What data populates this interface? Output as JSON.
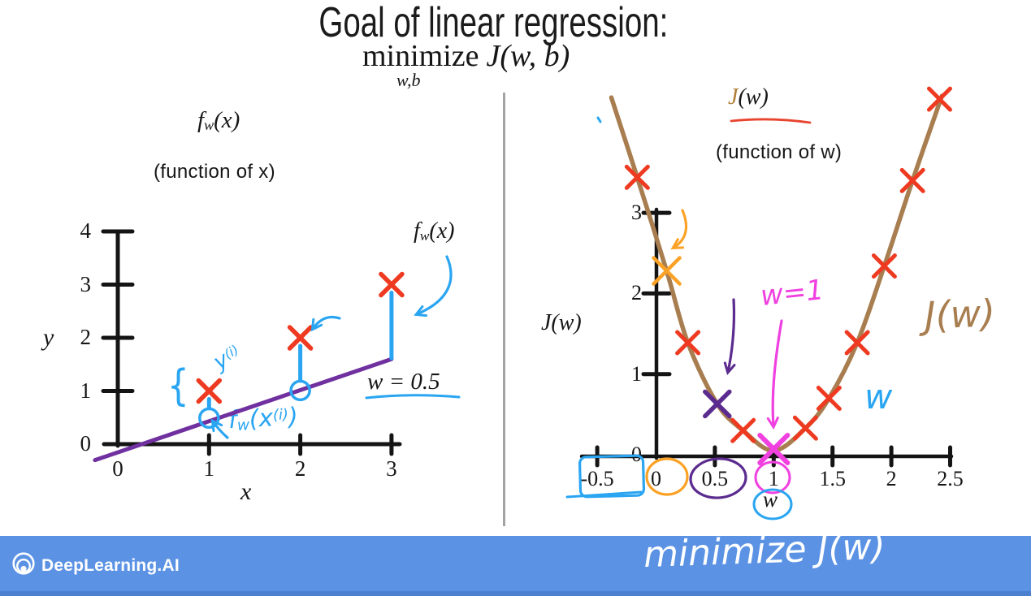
{
  "slide": {
    "title": "Goal of linear regression:",
    "objective_operator": "minimize",
    "objective_subscript": "w,b",
    "objective_expression": "J(w, b)"
  },
  "left_chart": {
    "title_base": "f",
    "title_sub": "w",
    "title_rest": "(x)",
    "subtitle": "(function of x)",
    "ylabel": "y",
    "xlabel": "x",
    "yticks": [
      "4",
      "3",
      "2",
      "1",
      "0"
    ],
    "xticks": [
      "0",
      "1",
      "2",
      "3"
    ],
    "callout_base": "f",
    "callout_sub": "w",
    "callout_rest": "(x)",
    "w_value_label": "w = 0.5",
    "target_label_base": "y",
    "target_label_sup": "(i)",
    "pred_label_base": "f",
    "pred_label_sub": "w",
    "pred_label_mid": "(x",
    "pred_label_sup": "(i)",
    "pred_label_end": ")",
    "brace": "{"
  },
  "right_chart": {
    "title_j": "J",
    "title_rest": "(w)",
    "subtitle": "(function of w)",
    "ylabel": "J(w)",
    "xlabel": "w",
    "yticks": [
      "3",
      "2",
      "1",
      "0"
    ],
    "xticks": [
      "-0.5",
      "0",
      "0.5",
      "1",
      "1.5",
      "2",
      "2.5"
    ],
    "min_annotation": "w=1",
    "curve_label": "J(w)",
    "axis_note": "w"
  },
  "footer": {
    "brand": "DeepLearning.AI",
    "logo_icon": "deeplearning-rings-icon",
    "note": "minimize J(w)"
  },
  "colors": {
    "red": "#ee3a20",
    "blue": "#2aa5f2",
    "purple_line": "#7030a0",
    "purple": "#5b2b8f",
    "orange": "#fba226",
    "magenta": "#f040e0",
    "brown": "#a87e50",
    "underline_red": "#e8442e",
    "axis": "#141414",
    "footer_blue": "#5b92e4",
    "title_j_gold": "#b08036"
  },
  "chart_data": [
    {
      "type": "scatter",
      "title": "f_w(x)",
      "subtitle": "(function of x)",
      "xlabel": "x",
      "ylabel": "y",
      "xlim": [
        -0.3,
        3.3
      ],
      "ylim": [
        -0.4,
        4.2
      ],
      "xticks": [
        0,
        1,
        2,
        3
      ],
      "yticks": [
        0,
        1,
        2,
        3,
        4
      ],
      "points": [
        [
          1,
          1
        ],
        [
          2,
          2
        ],
        [
          3,
          3
        ]
      ],
      "fit_line": {
        "label": "f_w(x)",
        "w": 0.5,
        "b": 0,
        "x1": -0.25,
        "y1": -0.3,
        "x2": 3.0,
        "y2": 1.6
      },
      "fit_points": [
        [
          1,
          0.49
        ],
        [
          2,
          1.01
        ]
      ],
      "residuals": [
        {
          "x": 1,
          "y": 1,
          "yhat": 0.49
        },
        {
          "x": 2,
          "y": 2,
          "yhat": 1.01
        },
        {
          "x": 3,
          "y": 3,
          "yhat": 1.6
        }
      ],
      "annotations": [
        "y^(i)",
        "f_w(x^(i))",
        "w = 0.5",
        "f_w(x)"
      ]
    },
    {
      "type": "line",
      "title": "J(w)",
      "subtitle": "(function of w)",
      "xlabel": "w",
      "ylabel": "J(w)",
      "xticks": [
        -0.5,
        0,
        0.5,
        1,
        1.5,
        2,
        2.5
      ],
      "yticks": [
        0,
        1,
        2,
        3
      ],
      "curve_points": [
        [
          -0.38,
          4.43
        ],
        [
          -0.16,
          3.44
        ],
        [
          0.09,
          2.28
        ],
        [
          0.27,
          1.39
        ],
        [
          0.52,
          0.63
        ],
        [
          0.74,
          0.3
        ],
        [
          1,
          0.05
        ],
        [
          1.27,
          0.33
        ],
        [
          1.47,
          0.7
        ],
        [
          1.71,
          1.39
        ],
        [
          1.94,
          2.34
        ],
        [
          2.18,
          3.4
        ],
        [
          2.43,
          4.45
        ]
      ],
      "x_marks": [
        [
          -0.16,
          3.44
        ],
        [
          0.27,
          1.39
        ],
        [
          0.74,
          0.3
        ],
        [
          1.27,
          0.33
        ],
        [
          1.47,
          0.7
        ],
        [
          1.71,
          1.39
        ],
        [
          1.94,
          2.34
        ],
        [
          2.18,
          3.4
        ],
        [
          2.41,
          4.41
        ]
      ],
      "special_marks": [
        {
          "w": 0.09,
          "J": 2.28,
          "color": "orange"
        },
        {
          "w": 0.52,
          "J": 0.63,
          "color": "purple"
        },
        {
          "w": 1.0,
          "J": 0.07,
          "color": "magenta"
        }
      ],
      "minimum": {
        "w": 1,
        "J": 0,
        "label": "w=1"
      }
    }
  ]
}
